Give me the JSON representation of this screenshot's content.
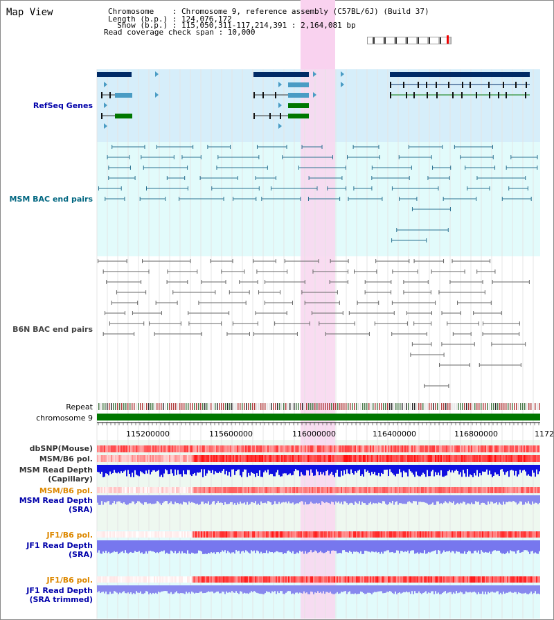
{
  "app_title": "Map View",
  "header": {
    "chromosome_line": "Chromosome    : Chromosome 9, reference assembly (C57BL/6J) (Build 37)",
    "length_line": "Length (b.p.) : 124,076,172",
    "show_line": "  Show (b.p.) : 115,050,311-117,214,391 : 2,164,081 bp",
    "coverage_line": "Read coverage check span : 10,000"
  },
  "tracks": {
    "refseq": "RefSeq Genes",
    "msm_bac": "MSM BAC end pairs",
    "b6n_bac": "B6N BAC end pairs",
    "repeat": "Repeat",
    "chromosome": "chromosome 9",
    "dbsnp": "dbSNP(Mouse)",
    "msm_b6_pol_1": "MSM/B6 pol.",
    "msm_read_depth_cap_1": "MSM Read Depth",
    "msm_read_depth_cap_2": "(Capillary)",
    "msm_b6_pol_2": "MSM/B6 pol.",
    "msm_read_depth_sra_1": "MSM Read Depth",
    "msm_read_depth_sra_2": "(SRA)",
    "jf1_b6_pol_1": "JF1/B6 pol.",
    "jf1_read_depth_sra_1": "JF1 Read Depth",
    "jf1_read_depth_sra_2": "(SRA)",
    "jf1_b6_pol_2": "JF1/B6 pol.",
    "jf1_read_depth_trim_1": "JF1 Read Depth",
    "jf1_read_depth_trim_2": "(SRA trimmed)"
  },
  "axis_ticks": [
    "115200000",
    "115600000",
    "116000000",
    "116400000",
    "116800000",
    "1172"
  ],
  "colors": {
    "refseq_label": "#0000aa",
    "msm_label": "#006680",
    "b6n_label": "#444444",
    "pol_label": "#dd8800",
    "depth_label": "#0000aa",
    "highlight": "#f8d8f0",
    "chromosome_bar": "#007700"
  }
}
